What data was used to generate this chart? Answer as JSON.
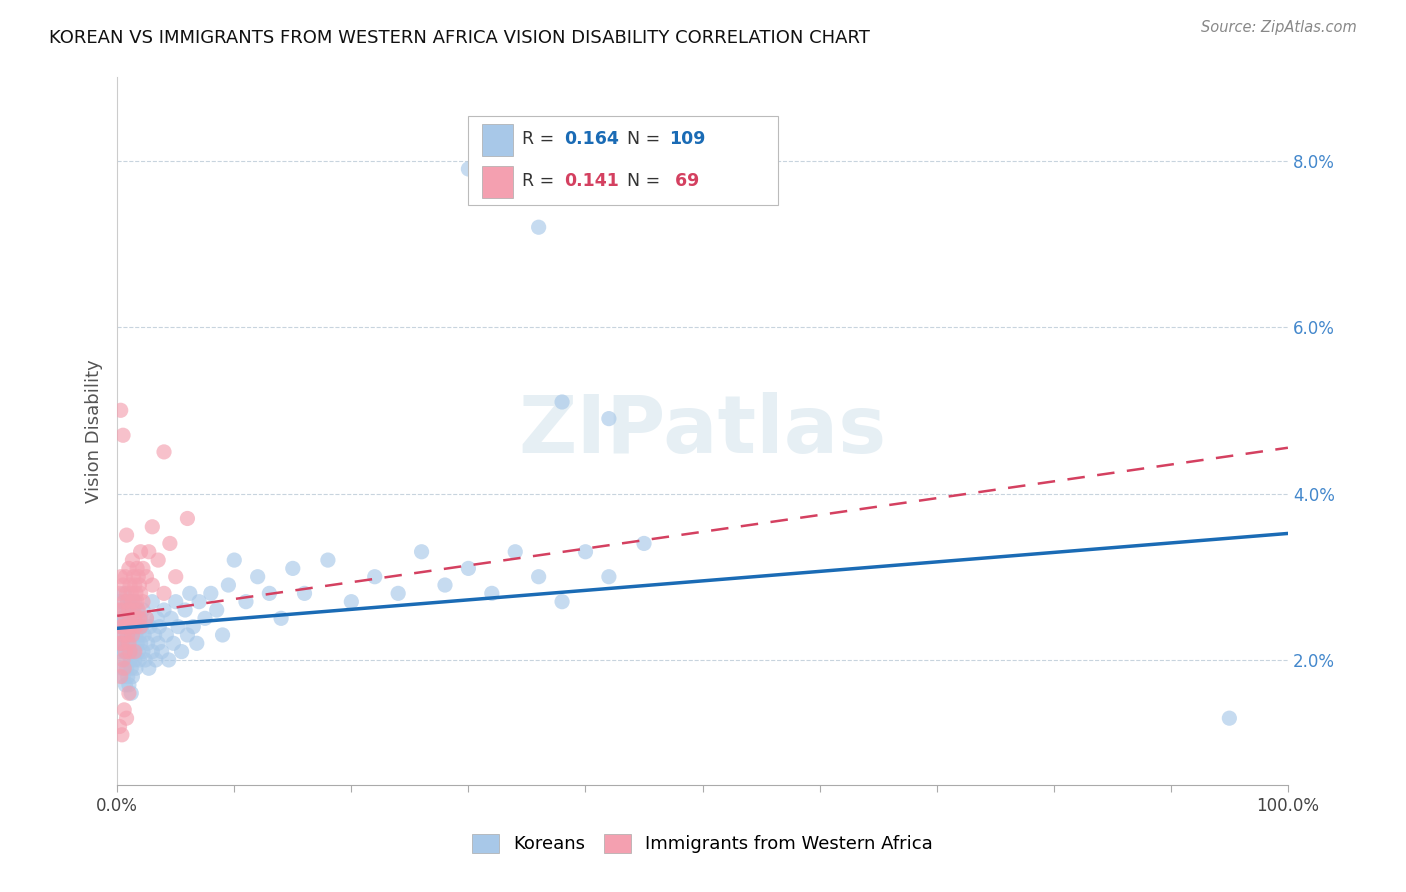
{
  "title": "KOREAN VS IMMIGRANTS FROM WESTERN AFRICA VISION DISABILITY CORRELATION CHART",
  "source": "Source: ZipAtlas.com",
  "ylabel": "Vision Disability",
  "yticks": [
    "2.0%",
    "4.0%",
    "6.0%",
    "8.0%"
  ],
  "ytick_vals": [
    0.02,
    0.04,
    0.06,
    0.08
  ],
  "xlim": [
    0.0,
    1.0
  ],
  "ylim": [
    0.005,
    0.09
  ],
  "korean_color": "#a8c8e8",
  "wa_color": "#f4a0b0",
  "korean_line_color": "#1a6bb5",
  "wa_line_color": "#d44060",
  "korean_r": 0.164,
  "korean_n": 109,
  "wa_r": 0.141,
  "wa_n": 69,
  "watermark": "ZIPatlas",
  "background_color": "#ffffff",
  "grid_color": "#c8d4de",
  "korean_scatter": [
    [
      0.001,
      0.024
    ],
    [
      0.002,
      0.022
    ],
    [
      0.002,
      0.027
    ],
    [
      0.003,
      0.025
    ],
    [
      0.003,
      0.021
    ],
    [
      0.004,
      0.023
    ],
    [
      0.004,
      0.019
    ],
    [
      0.005,
      0.026
    ],
    [
      0.005,
      0.022
    ],
    [
      0.005,
      0.018
    ],
    [
      0.006,
      0.025
    ],
    [
      0.006,
      0.021
    ],
    [
      0.006,
      0.028
    ],
    [
      0.007,
      0.024
    ],
    [
      0.007,
      0.02
    ],
    [
      0.007,
      0.017
    ],
    [
      0.008,
      0.026
    ],
    [
      0.008,
      0.023
    ],
    [
      0.008,
      0.019
    ],
    [
      0.009,
      0.027
    ],
    [
      0.009,
      0.022
    ],
    [
      0.009,
      0.018
    ],
    [
      0.01,
      0.025
    ],
    [
      0.01,
      0.021
    ],
    [
      0.01,
      0.017
    ],
    [
      0.011,
      0.024
    ],
    [
      0.011,
      0.02
    ],
    [
      0.011,
      0.027
    ],
    [
      0.012,
      0.023
    ],
    [
      0.012,
      0.019
    ],
    [
      0.012,
      0.016
    ],
    [
      0.013,
      0.026
    ],
    [
      0.013,
      0.022
    ],
    [
      0.013,
      0.018
    ],
    [
      0.014,
      0.025
    ],
    [
      0.014,
      0.021
    ],
    [
      0.015,
      0.024
    ],
    [
      0.015,
      0.02
    ],
    [
      0.015,
      0.027
    ],
    [
      0.016,
      0.023
    ],
    [
      0.016,
      0.019
    ],
    [
      0.017,
      0.026
    ],
    [
      0.017,
      0.022
    ],
    [
      0.018,
      0.024
    ],
    [
      0.018,
      0.021
    ],
    [
      0.019,
      0.023
    ],
    [
      0.019,
      0.02
    ],
    [
      0.02,
      0.025
    ],
    [
      0.02,
      0.022
    ],
    [
      0.021,
      0.024
    ],
    [
      0.022,
      0.021
    ],
    [
      0.022,
      0.026
    ],
    [
      0.023,
      0.023
    ],
    [
      0.024,
      0.02
    ],
    [
      0.025,
      0.025
    ],
    [
      0.026,
      0.022
    ],
    [
      0.027,
      0.019
    ],
    [
      0.028,
      0.024
    ],
    [
      0.03,
      0.021
    ],
    [
      0.03,
      0.027
    ],
    [
      0.032,
      0.023
    ],
    [
      0.033,
      0.02
    ],
    [
      0.034,
      0.025
    ],
    [
      0.035,
      0.022
    ],
    [
      0.036,
      0.024
    ],
    [
      0.038,
      0.021
    ],
    [
      0.04,
      0.026
    ],
    [
      0.042,
      0.023
    ],
    [
      0.044,
      0.02
    ],
    [
      0.046,
      0.025
    ],
    [
      0.048,
      0.022
    ],
    [
      0.05,
      0.027
    ],
    [
      0.052,
      0.024
    ],
    [
      0.055,
      0.021
    ],
    [
      0.058,
      0.026
    ],
    [
      0.06,
      0.023
    ],
    [
      0.062,
      0.028
    ],
    [
      0.065,
      0.024
    ],
    [
      0.068,
      0.022
    ],
    [
      0.07,
      0.027
    ],
    [
      0.075,
      0.025
    ],
    [
      0.08,
      0.028
    ],
    [
      0.085,
      0.026
    ],
    [
      0.09,
      0.023
    ],
    [
      0.095,
      0.029
    ],
    [
      0.1,
      0.032
    ],
    [
      0.11,
      0.027
    ],
    [
      0.12,
      0.03
    ],
    [
      0.13,
      0.028
    ],
    [
      0.14,
      0.025
    ],
    [
      0.15,
      0.031
    ],
    [
      0.16,
      0.028
    ],
    [
      0.18,
      0.032
    ],
    [
      0.2,
      0.027
    ],
    [
      0.22,
      0.03
    ],
    [
      0.24,
      0.028
    ],
    [
      0.26,
      0.033
    ],
    [
      0.28,
      0.029
    ],
    [
      0.3,
      0.031
    ],
    [
      0.32,
      0.028
    ],
    [
      0.34,
      0.033
    ],
    [
      0.36,
      0.03
    ],
    [
      0.38,
      0.027
    ],
    [
      0.4,
      0.033
    ],
    [
      0.42,
      0.03
    ],
    [
      0.45,
      0.034
    ],
    [
      0.3,
      0.079
    ],
    [
      0.36,
      0.072
    ],
    [
      0.38,
      0.051
    ],
    [
      0.42,
      0.049
    ],
    [
      0.95,
      0.013
    ]
  ],
  "wa_scatter": [
    [
      0.001,
      0.026
    ],
    [
      0.002,
      0.028
    ],
    [
      0.002,
      0.022
    ],
    [
      0.003,
      0.03
    ],
    [
      0.003,
      0.024
    ],
    [
      0.003,
      0.018
    ],
    [
      0.004,
      0.026
    ],
    [
      0.004,
      0.022
    ],
    [
      0.005,
      0.029
    ],
    [
      0.005,
      0.024
    ],
    [
      0.005,
      0.02
    ],
    [
      0.006,
      0.027
    ],
    [
      0.006,
      0.023
    ],
    [
      0.006,
      0.019
    ],
    [
      0.007,
      0.03
    ],
    [
      0.007,
      0.025
    ],
    [
      0.007,
      0.021
    ],
    [
      0.008,
      0.028
    ],
    [
      0.008,
      0.024
    ],
    [
      0.008,
      0.035
    ],
    [
      0.009,
      0.027
    ],
    [
      0.009,
      0.023
    ],
    [
      0.01,
      0.031
    ],
    [
      0.01,
      0.026
    ],
    [
      0.01,
      0.022
    ],
    [
      0.011,
      0.029
    ],
    [
      0.011,
      0.025
    ],
    [
      0.011,
      0.021
    ],
    [
      0.012,
      0.028
    ],
    [
      0.012,
      0.024
    ],
    [
      0.013,
      0.032
    ],
    [
      0.013,
      0.027
    ],
    [
      0.013,
      0.023
    ],
    [
      0.014,
      0.03
    ],
    [
      0.014,
      0.026
    ],
    [
      0.015,
      0.029
    ],
    [
      0.015,
      0.025
    ],
    [
      0.015,
      0.021
    ],
    [
      0.016,
      0.028
    ],
    [
      0.016,
      0.024
    ],
    [
      0.017,
      0.031
    ],
    [
      0.017,
      0.027
    ],
    [
      0.018,
      0.03
    ],
    [
      0.018,
      0.026
    ],
    [
      0.019,
      0.029
    ],
    [
      0.019,
      0.025
    ],
    [
      0.02,
      0.033
    ],
    [
      0.02,
      0.028
    ],
    [
      0.02,
      0.024
    ],
    [
      0.022,
      0.031
    ],
    [
      0.022,
      0.027
    ],
    [
      0.025,
      0.03
    ],
    [
      0.025,
      0.025
    ],
    [
      0.027,
      0.033
    ],
    [
      0.03,
      0.029
    ],
    [
      0.03,
      0.036
    ],
    [
      0.035,
      0.032
    ],
    [
      0.04,
      0.028
    ],
    [
      0.045,
      0.034
    ],
    [
      0.05,
      0.03
    ],
    [
      0.003,
      0.05
    ],
    [
      0.005,
      0.047
    ],
    [
      0.04,
      0.045
    ],
    [
      0.06,
      0.037
    ],
    [
      0.002,
      0.012
    ],
    [
      0.004,
      0.011
    ],
    [
      0.006,
      0.014
    ],
    [
      0.008,
      0.013
    ],
    [
      0.01,
      0.016
    ]
  ]
}
